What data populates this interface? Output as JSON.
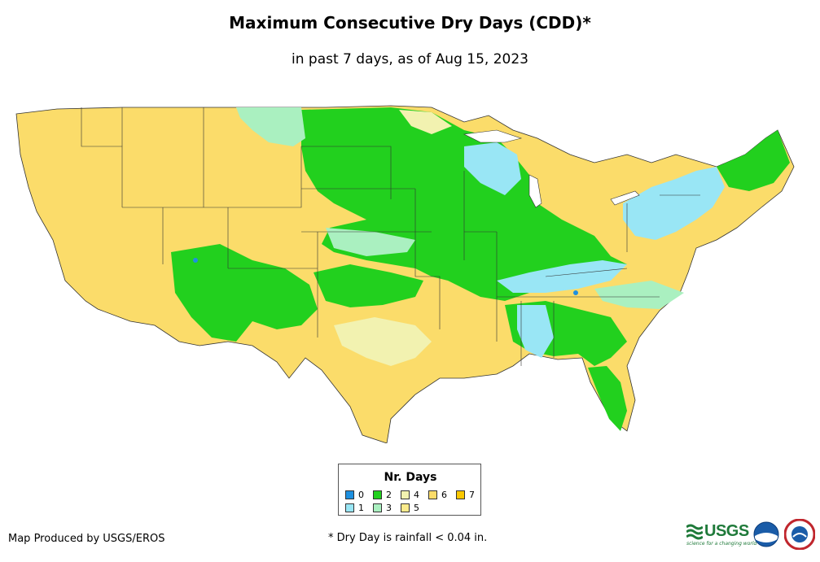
{
  "title": "Maximum Consecutive Dry Days (CDD)*",
  "subtitle": "in past 7 days, as of Aug 15, 2023",
  "legend": {
    "title": "Nr. Days",
    "items": [
      {
        "label": "0",
        "color": "#1e90e0"
      },
      {
        "label": "1",
        "color": "#99e6f5"
      },
      {
        "label": "2",
        "color": "#22d01e"
      },
      {
        "label": "3",
        "color": "#aaf0c0"
      },
      {
        "label": "4",
        "color": "#f2f2b0"
      },
      {
        "label": "5",
        "color": "#fbeb8c"
      },
      {
        "label": "6",
        "color": "#fbdc6a"
      },
      {
        "label": "7",
        "color": "#fbc800"
      }
    ]
  },
  "footer": {
    "credit": "Map Produced by USGS/EROS",
    "note": "* Dry Day is rainfall < 0.04 in."
  },
  "logos": {
    "usgs": "USGS",
    "usgs_tagline": "science for a changing world",
    "noaa": "noaa",
    "nws": "NWS"
  },
  "map_regions": [
    {
      "name": "west",
      "days": 6
    },
    {
      "name": "south-plains",
      "days": 6
    },
    {
      "name": "northern-plains",
      "days": 2
    },
    {
      "name": "midwest",
      "days": 2
    },
    {
      "name": "ohio-valley",
      "days": 1
    },
    {
      "name": "northeast",
      "days": 1
    },
    {
      "name": "southeast",
      "days": 2
    },
    {
      "name": "florida",
      "days": 2
    }
  ]
}
